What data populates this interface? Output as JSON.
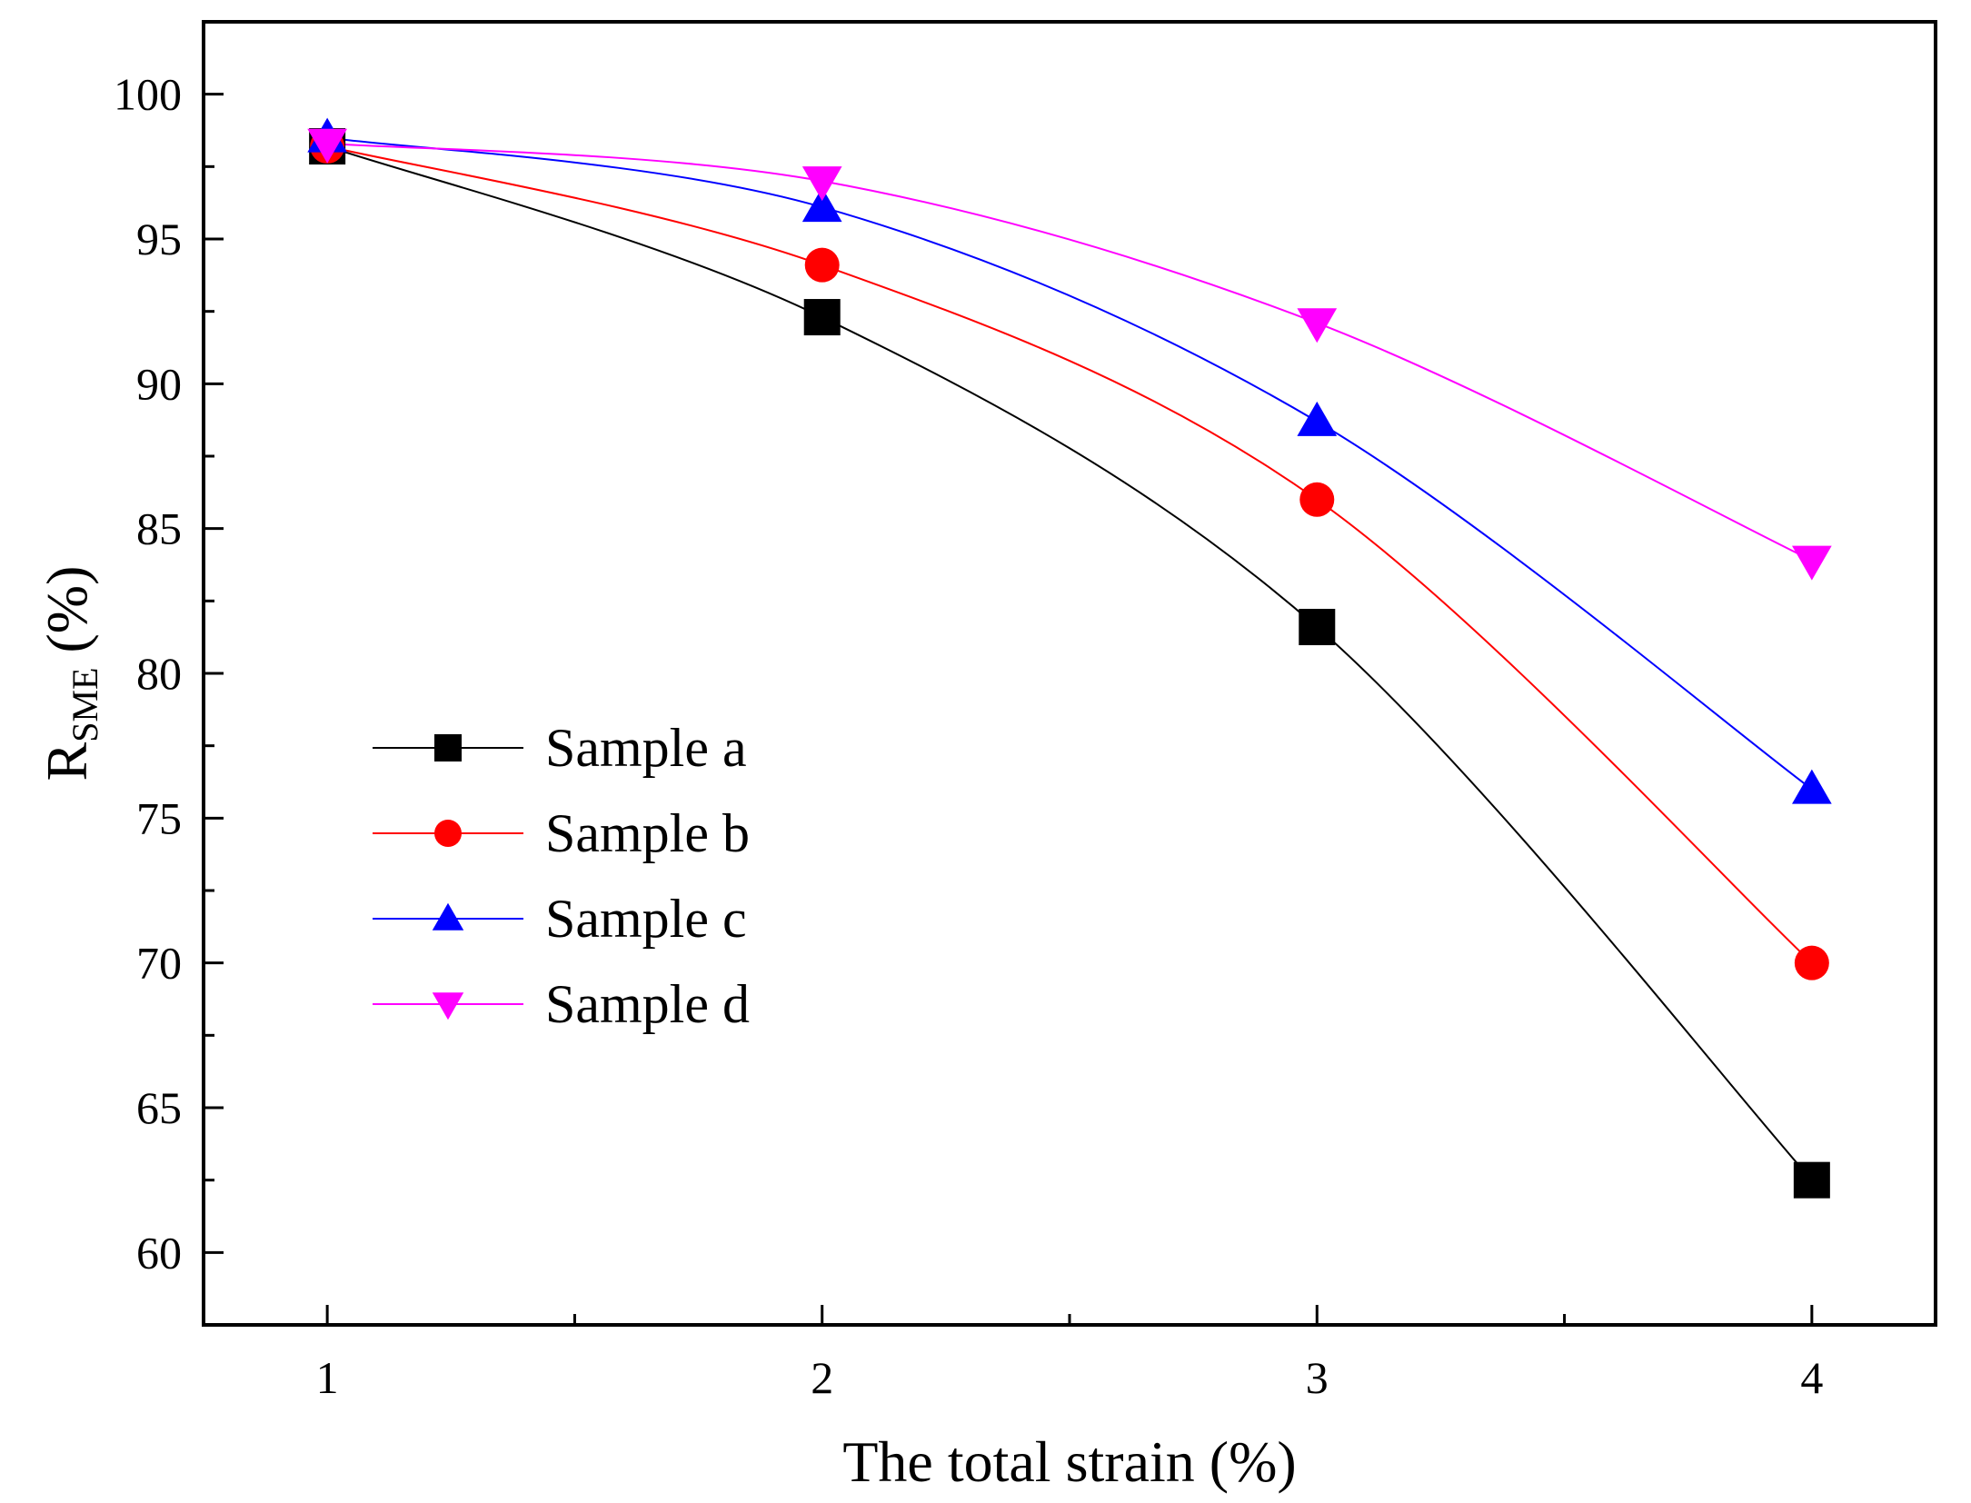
{
  "chart_data": {
    "type": "line",
    "title": "",
    "xlabel": "The total strain (%)",
    "ylabel": {
      "main": "R",
      "subscript": "SME",
      "suffix": " (%)"
    },
    "x": [
      1,
      2,
      3,
      4
    ],
    "xlim": [
      0.75,
      4.25
    ],
    "ylim": [
      57.5,
      102.5
    ],
    "xticks": [
      "1",
      "2",
      "3",
      "4"
    ],
    "xtick_values": [
      1,
      2,
      3,
      4
    ],
    "yticks": [
      "60",
      "65",
      "70",
      "75",
      "80",
      "85",
      "90",
      "95",
      "100"
    ],
    "ytick_values": [
      60,
      65,
      70,
      75,
      80,
      85,
      90,
      95,
      100
    ],
    "legend_position": "center-left",
    "series": [
      {
        "name": "Sample a",
        "values": [
          98.2,
          92.3,
          81.6,
          62.5
        ],
        "color": "#000000",
        "marker": "square"
      },
      {
        "name": "Sample b",
        "values": [
          98.2,
          94.1,
          86.0,
          70.0
        ],
        "color": "#ff0000",
        "marker": "circle"
      },
      {
        "name": "Sample c",
        "values": [
          98.5,
          96.1,
          88.7,
          76.0
        ],
        "color": "#0000ff",
        "marker": "triangle-up"
      },
      {
        "name": "Sample d",
        "values": [
          98.3,
          97.0,
          92.1,
          83.9
        ],
        "color": "#ff00ff",
        "marker": "triangle-down"
      }
    ]
  }
}
